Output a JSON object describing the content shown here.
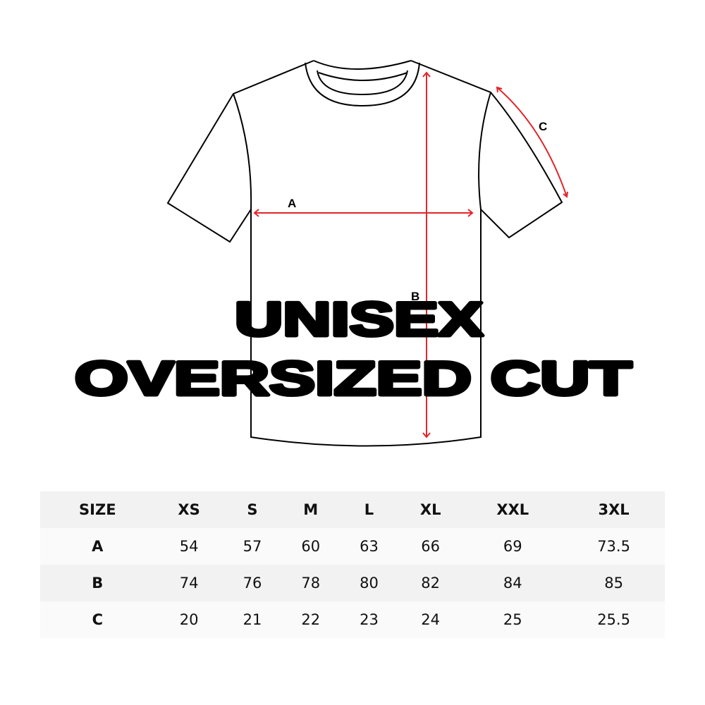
{
  "diagram": {
    "labels": {
      "a": "A",
      "b": "B",
      "c": "C"
    },
    "measure_color": "#e0262b"
  },
  "title": {
    "line1": "UNISEX",
    "line2": "OVERSIZED CUT"
  },
  "size_table": {
    "header": [
      "SIZE",
      "XS",
      "S",
      "M",
      "L",
      "XL",
      "XXL",
      "3XL"
    ],
    "rows": [
      [
        "A",
        "54",
        "57",
        "60",
        "63",
        "66",
        "69",
        "73.5"
      ],
      [
        "B",
        "74",
        "76",
        "78",
        "80",
        "82",
        "84",
        "85"
      ],
      [
        "C",
        "20",
        "21",
        "22",
        "23",
        "24",
        "25",
        "25.5"
      ]
    ]
  }
}
